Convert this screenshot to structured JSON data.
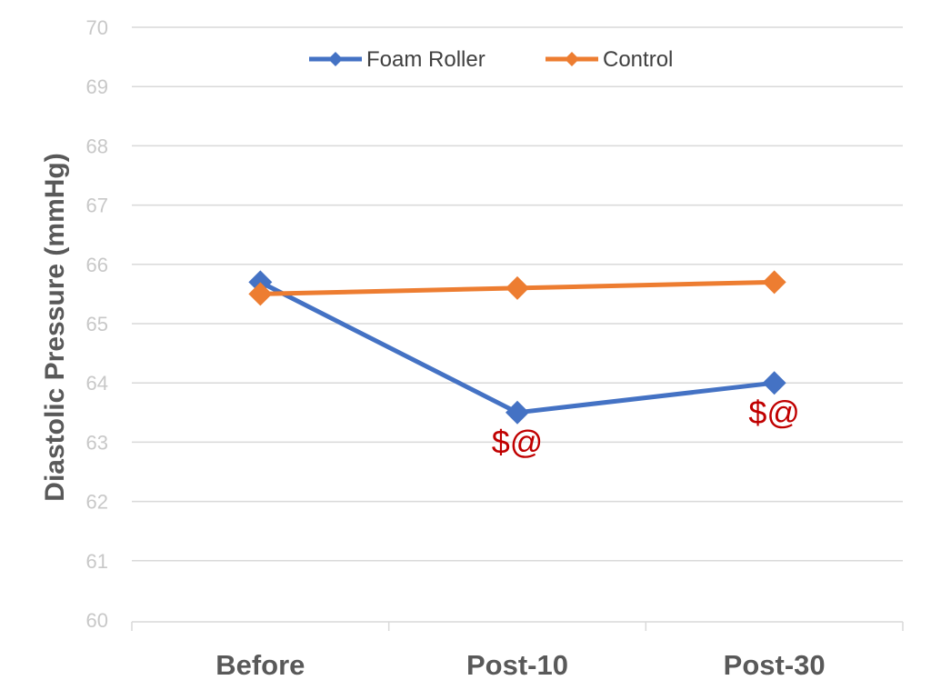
{
  "chart_data": {
    "type": "line",
    "title": "",
    "xlabel": "",
    "ylabel": "Diastolic Pressure (mmHg)",
    "categories": [
      "Before",
      "Post-10",
      "Post-30"
    ],
    "ylim": [
      60,
      70
    ],
    "yticks": [
      "60",
      "61",
      "62",
      "63",
      "64",
      "65",
      "66",
      "67",
      "68",
      "69",
      "70"
    ],
    "grid": true,
    "legend_position": "top-center",
    "series": [
      {
        "name": "Foam Roller",
        "color": "#4472c4",
        "marker": "diamond",
        "values": [
          65.7,
          63.5,
          64.0
        ]
      },
      {
        "name": "Control",
        "color": "#ed7d31",
        "marker": "diamond",
        "values": [
          65.5,
          65.6,
          65.7
        ]
      }
    ],
    "annotations": [
      {
        "text": "$@",
        "category": "Post-10",
        "y": 63.0,
        "color": "#c00000"
      },
      {
        "text": "$@",
        "category": "Post-30",
        "y": 63.5,
        "color": "#c00000"
      }
    ]
  }
}
